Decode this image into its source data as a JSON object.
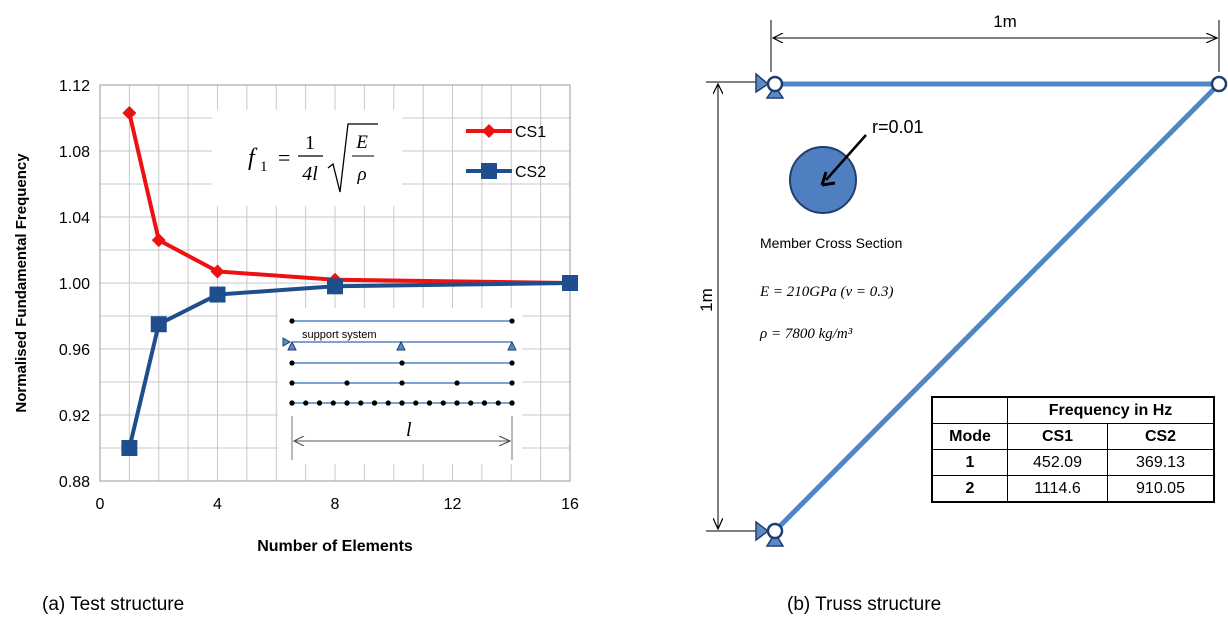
{
  "panel_a": {
    "caption": "(a)   Test structure",
    "formula": {
      "lhs": "f",
      "sub": "1",
      "num": "1",
      "den": "4l",
      "rad_num": "E",
      "rad_den": "ρ"
    },
    "inset": {
      "support_label": "support system",
      "length_label": "l"
    }
  },
  "panel_b": {
    "caption": "(b) Truss structure",
    "width_dim": "1m",
    "height_dim": "1m",
    "radius_label": "r=0.01",
    "cross_section_label": "Member Cross Section",
    "modulus": "E = 210GPa (ν = 0.3)",
    "density": "ρ = 7800 kg/m³",
    "table": {
      "group_header": "Frequency in Hz",
      "col_mode": "Mode",
      "col_cs1": "CS1",
      "col_cs2": "CS2",
      "rows": [
        {
          "mode": "1",
          "cs1": "452.09",
          "cs2": "369.13"
        },
        {
          "mode": "2",
          "cs1": "1114.6",
          "cs2": "910.05"
        }
      ]
    }
  },
  "colors": {
    "cs1": "#ee1111",
    "cs2": "#1f4e8c",
    "truss": "#4f86c6",
    "grid": "#c8c8c8"
  },
  "chart_data": {
    "type": "line",
    "xlabel": "Number of Elements",
    "ylabel": "Normalised Fundamental Frequency",
    "xlim": [
      0,
      16
    ],
    "ylim": [
      0.88,
      1.12
    ],
    "xticks": [
      0,
      4,
      8,
      12,
      16
    ],
    "yticks": [
      "0.88",
      "0.92",
      "0.96",
      "1.00",
      "1.04",
      "1.08",
      "1.12"
    ],
    "grid": true,
    "legend_position": "top-right",
    "series": [
      {
        "name": "CS1",
        "marker": "diamond",
        "color": "#ee1111",
        "x": [
          1,
          2,
          4,
          8,
          16
        ],
        "y": [
          1.103,
          1.026,
          1.007,
          1.002,
          1.0
        ]
      },
      {
        "name": "CS2",
        "marker": "square",
        "color": "#1f4e8c",
        "x": [
          1,
          2,
          4,
          8,
          16
        ],
        "y": [
          0.9,
          0.975,
          0.993,
          0.998,
          1.0
        ]
      }
    ]
  }
}
